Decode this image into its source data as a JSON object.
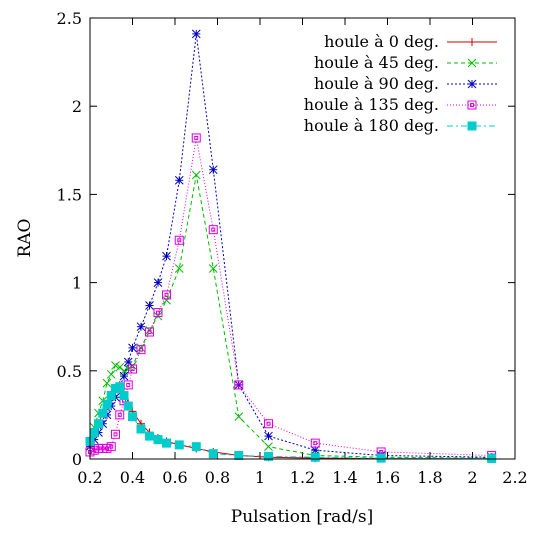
{
  "chart_data": {
    "type": "line",
    "title": "",
    "xlabel": "Pulsation [rad/s]",
    "ylabel": "RAO",
    "xlim": [
      0.2,
      2.2
    ],
    "ylim": [
      0,
      2.5
    ],
    "xticks": [
      0.2,
      0.4,
      0.6,
      0.8,
      1,
      1.2,
      1.4,
      1.6,
      1.8,
      2,
      2.2
    ],
    "xtick_labels": [
      "0.2",
      "0.4",
      "0.6",
      "0.8",
      "1",
      "1.2",
      "1.4",
      "1.6",
      "1.8",
      "2",
      "2.2"
    ],
    "yticks": [
      0,
      0.5,
      1,
      1.5,
      2,
      2.5
    ],
    "ytick_labels": [
      "0",
      "0.5",
      "1",
      "1.5",
      "2",
      "2.5"
    ],
    "grid": false,
    "legend_position": "top-right",
    "series": [
      {
        "name": "houle à 0 deg.",
        "color": "#cc0000",
        "marker": "plus",
        "dash": "none",
        "x": [
          0.2,
          0.22,
          0.24,
          0.26,
          0.28,
          0.3,
          0.32,
          0.34,
          0.36,
          0.38,
          0.4,
          0.44,
          0.48,
          0.52,
          0.56,
          0.62,
          0.7,
          0.78,
          0.9,
          1.04,
          1.26,
          1.57,
          2.09
        ],
        "y": [
          0.1,
          0.15,
          0.2,
          0.26,
          0.31,
          0.36,
          0.4,
          0.42,
          0.38,
          0.32,
          0.27,
          0.2,
          0.15,
          0.12,
          0.1,
          0.08,
          0.06,
          0.04,
          0.02,
          0.01,
          0.005,
          0.002,
          0.001
        ]
      },
      {
        "name": "houle à 45 deg.",
        "color": "#00bb00",
        "marker": "x",
        "dash": "4,3",
        "x": [
          0.2,
          0.22,
          0.24,
          0.26,
          0.28,
          0.3,
          0.32,
          0.34,
          0.36,
          0.38,
          0.4,
          0.44,
          0.48,
          0.52,
          0.56,
          0.62,
          0.7,
          0.78,
          0.9,
          1.04,
          1.26,
          1.57,
          2.09
        ],
        "y": [
          0.1,
          0.18,
          0.26,
          0.33,
          0.43,
          0.48,
          0.53,
          0.52,
          0.5,
          0.51,
          0.53,
          0.63,
          0.73,
          0.81,
          0.9,
          1.08,
          1.61,
          1.08,
          0.24,
          0.07,
          0.02,
          0.01,
          0.005
        ]
      },
      {
        "name": "houle à 90 deg.",
        "color": "#0000bb",
        "marker": "star",
        "dash": "2,2",
        "x": [
          0.2,
          0.22,
          0.24,
          0.26,
          0.28,
          0.3,
          0.32,
          0.34,
          0.36,
          0.38,
          0.4,
          0.44,
          0.48,
          0.52,
          0.56,
          0.62,
          0.7,
          0.78,
          0.9,
          1.04,
          1.26,
          1.57,
          2.09
        ],
        "y": [
          0.07,
          0.11,
          0.15,
          0.2,
          0.25,
          0.3,
          0.35,
          0.41,
          0.47,
          0.55,
          0.63,
          0.75,
          0.87,
          1.0,
          1.15,
          1.58,
          2.41,
          1.64,
          0.42,
          0.13,
          0.05,
          0.02,
          0.01
        ]
      },
      {
        "name": "houle à 135 deg.",
        "color": "#dd00dd",
        "marker": "square",
        "dash": "1,2",
        "x": [
          0.2,
          0.22,
          0.24,
          0.26,
          0.28,
          0.3,
          0.32,
          0.34,
          0.36,
          0.38,
          0.4,
          0.44,
          0.48,
          0.52,
          0.56,
          0.62,
          0.7,
          0.78,
          0.9,
          1.04,
          1.26,
          1.57,
          2.09
        ],
        "y": [
          0.04,
          0.05,
          0.06,
          0.06,
          0.06,
          0.07,
          0.14,
          0.25,
          0.33,
          0.42,
          0.51,
          0.62,
          0.72,
          0.83,
          0.93,
          1.24,
          1.82,
          1.3,
          0.42,
          0.2,
          0.09,
          0.04,
          0.02
        ]
      },
      {
        "name": "houle à 180 deg.",
        "color": "#00cccc",
        "marker": "filled-square",
        "dash": "6,3,2,3",
        "x": [
          0.2,
          0.22,
          0.24,
          0.26,
          0.28,
          0.3,
          0.32,
          0.34,
          0.36,
          0.38,
          0.4,
          0.44,
          0.48,
          0.52,
          0.56,
          0.62,
          0.7,
          0.78,
          0.9,
          1.04,
          1.26,
          1.57,
          2.09
        ],
        "y": [
          0.1,
          0.15,
          0.2,
          0.26,
          0.31,
          0.36,
          0.4,
          0.41,
          0.36,
          0.3,
          0.24,
          0.17,
          0.13,
          0.11,
          0.09,
          0.08,
          0.07,
          0.03,
          0.02,
          0.015,
          0.01,
          0.005,
          0.003
        ]
      }
    ]
  }
}
